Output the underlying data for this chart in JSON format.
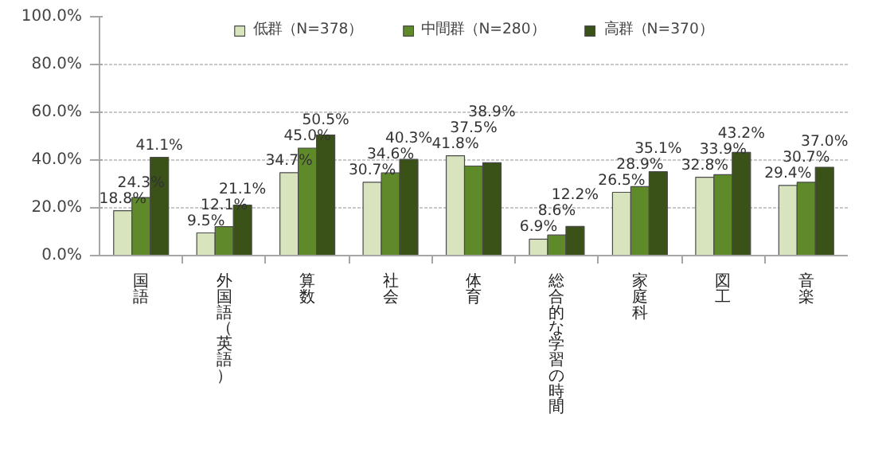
{
  "chart_data": {
    "type": "bar",
    "categories": [
      "国語",
      "外国語（英語）",
      "算数",
      "社会",
      "体育",
      "総合的な学習の時間",
      "家庭科",
      "図工",
      "音楽"
    ],
    "series": [
      {
        "name": "低群（N=378）",
        "color": "#d7e4bd",
        "values": [
          18.8,
          9.5,
          34.7,
          30.7,
          41.8,
          6.9,
          26.5,
          32.8,
          29.4
        ],
        "value_labels": [
          "18.8%",
          "9.5%",
          "34.7%",
          "30.7%",
          "41.8%",
          "6.9%",
          "26.5%",
          "32.8%",
          "29.4%"
        ]
      },
      {
        "name": "中間群（N=280）",
        "color": "#5f8a2a",
        "values": [
          24.3,
          12.1,
          45.0,
          34.6,
          37.5,
          8.6,
          28.9,
          33.9,
          30.7
        ],
        "value_labels": [
          "24.3%",
          "12.1%",
          "45.0%",
          "34.6%",
          "37.5%",
          "8.6%",
          "28.9%",
          "33.9%",
          "30.7%"
        ]
      },
      {
        "name": "高群（N=370）",
        "color": "#3a5118",
        "values": [
          41.1,
          21.1,
          50.5,
          40.3,
          38.9,
          12.2,
          35.1,
          43.2,
          37.0
        ],
        "value_labels": [
          "41.1%",
          "21.1%",
          "50.5%",
          "40.3%",
          "38.9%",
          "12.2%",
          "35.1%",
          "43.2%",
          "37.0%"
        ]
      }
    ],
    "ylim": [
      0,
      100
    ],
    "yticks": [
      {
        "value": 0,
        "label": "0.0%"
      },
      {
        "value": 20,
        "label": "20.0%"
      },
      {
        "value": 40,
        "label": "40.0%"
      },
      {
        "value": 60,
        "label": "60.0%"
      },
      {
        "value": 80,
        "label": "80.0%"
      },
      {
        "value": 100,
        "label": "100.0%"
      }
    ],
    "grid": "y",
    "legend": "top"
  }
}
